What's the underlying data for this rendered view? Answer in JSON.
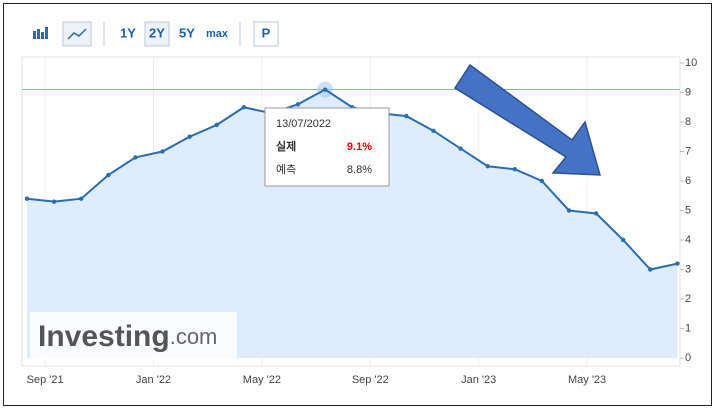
{
  "toolbar": {
    "buttons": [
      "1Y",
      "2Y",
      "5Y",
      "max",
      "P"
    ]
  },
  "logo": {
    "name": "Investing",
    "suffix": ".com"
  },
  "tooltip": {
    "date": "13/07/2022",
    "actual_label": "실제",
    "actual_value": "9.1%",
    "forecast_label": "예측",
    "forecast_value": "8.8%"
  },
  "chart_data": {
    "type": "area",
    "categories": [
      null,
      "Sep '21",
      null,
      null,
      null,
      "Jan '22",
      null,
      null,
      null,
      "May '22",
      null,
      null,
      null,
      "Sep '22",
      null,
      null,
      null,
      "Jan '23",
      null,
      null,
      null,
      "May '23",
      null,
      null,
      null
    ],
    "values": [
      5.4,
      5.3,
      5.4,
      6.2,
      6.8,
      7.0,
      7.5,
      7.9,
      8.5,
      8.3,
      8.6,
      9.1,
      8.5,
      8.3,
      8.2,
      7.7,
      7.1,
      6.5,
      6.4,
      6.0,
      5.0,
      4.9,
      4.0,
      3.0,
      3.2
    ],
    "color": "#2a6db0",
    "ylim": [
      0,
      10
    ],
    "yticks": [
      0,
      1,
      2,
      3,
      4,
      5,
      6,
      7,
      8,
      9,
      10
    ]
  }
}
